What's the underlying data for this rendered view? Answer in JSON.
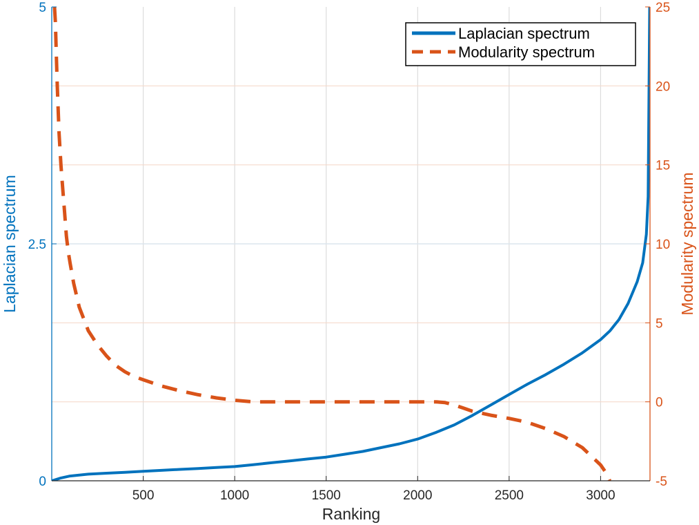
{
  "chart_data": {
    "type": "line",
    "xlabel": "Ranking",
    "xlim": [
      0,
      3270
    ],
    "x_ticks": [
      500,
      1000,
      1500,
      2000,
      2500,
      3000
    ],
    "y_left": {
      "label": "Laplacian spectrum",
      "lim": [
        0,
        5
      ],
      "ticks": [
        0,
        2.5,
        5
      ],
      "tick_labels": [
        "0",
        "2.5",
        "5"
      ],
      "color": "#0072BD"
    },
    "y_right": {
      "label": "Modularity spectrum",
      "lim": [
        -5,
        25
      ],
      "ticks": [
        -5,
        0,
        5,
        10,
        15,
        20,
        25
      ],
      "tick_labels": [
        "-5",
        "0",
        "5",
        "10",
        "15",
        "20",
        "25"
      ],
      "color": "#D95319"
    },
    "grid": true,
    "legend_position": "top-right",
    "series": [
      {
        "name": "Laplacian spectrum",
        "axis": "left",
        "style": "solid",
        "color": "#0072BD",
        "x": [
          1,
          50,
          100,
          200,
          300,
          400,
          500,
          600,
          700,
          800,
          900,
          1000,
          1100,
          1200,
          1300,
          1400,
          1500,
          1600,
          1700,
          1800,
          1900,
          2000,
          2100,
          2200,
          2300,
          2400,
          2500,
          2600,
          2700,
          2800,
          2900,
          3000,
          3050,
          3100,
          3150,
          3200,
          3230,
          3250,
          3260,
          3268
        ],
        "values": [
          0.0,
          0.03,
          0.05,
          0.07,
          0.08,
          0.09,
          0.1,
          0.11,
          0.12,
          0.13,
          0.14,
          0.15,
          0.17,
          0.19,
          0.21,
          0.23,
          0.25,
          0.28,
          0.31,
          0.35,
          0.39,
          0.44,
          0.51,
          0.59,
          0.69,
          0.8,
          0.91,
          1.02,
          1.12,
          1.23,
          1.35,
          1.49,
          1.58,
          1.7,
          1.87,
          2.1,
          2.3,
          2.6,
          3.0,
          5.0
        ]
      },
      {
        "name": "Modularity spectrum",
        "axis": "right",
        "style": "dashed",
        "color": "#D95319",
        "x": [
          15,
          20,
          25,
          30,
          40,
          50,
          60,
          70,
          80,
          90,
          100,
          120,
          150,
          200,
          250,
          300,
          350,
          400,
          450,
          500,
          600,
          700,
          800,
          900,
          1000,
          1100,
          1200,
          1300,
          1500,
          1800,
          2000,
          2100,
          2150,
          2200,
          2250,
          2300,
          2400,
          2500,
          2600,
          2700,
          2800,
          2900,
          3000,
          3030,
          3050
        ],
        "values": [
          25,
          24,
          22,
          20,
          17,
          15,
          13.5,
          12,
          10.5,
          9.5,
          8.8,
          7.5,
          6.0,
          4.5,
          3.6,
          2.9,
          2.3,
          1.9,
          1.6,
          1.4,
          1.0,
          0.7,
          0.45,
          0.25,
          0.1,
          0.0,
          0.0,
          0.0,
          0.0,
          0.0,
          0.0,
          0.0,
          -0.05,
          -0.2,
          -0.4,
          -0.6,
          -0.85,
          -1.05,
          -1.3,
          -1.7,
          -2.2,
          -2.9,
          -4.0,
          -4.5,
          -5.0
        ]
      }
    ]
  }
}
